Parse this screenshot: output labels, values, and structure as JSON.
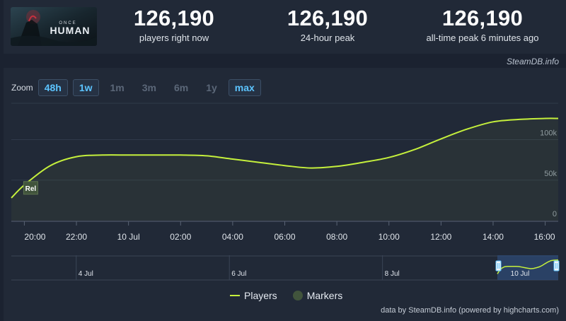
{
  "game": {
    "logo_title_top": "ONCE",
    "logo_title_main": "HUMAN"
  },
  "stats": [
    {
      "value": "126,190",
      "label": "players right now"
    },
    {
      "value": "126,190",
      "label": "24-hour peak"
    },
    {
      "value": "126,190",
      "label": "all-time peak 6 minutes ago"
    }
  ],
  "brand": "SteamDB.info",
  "zoom": {
    "label": "Zoom",
    "options": [
      {
        "label": "48h",
        "active": true
      },
      {
        "label": "1w",
        "active": true
      },
      {
        "label": "1m",
        "active": false
      },
      {
        "label": "3m",
        "active": false
      },
      {
        "label": "6m",
        "active": false
      },
      {
        "label": "1y",
        "active": false
      },
      {
        "label": "max",
        "active": true
      }
    ]
  },
  "legend": {
    "players": "Players",
    "markers": "Markers"
  },
  "credits": "data by SteamDB.info (powered by highcharts.com)",
  "colors": {
    "line": "#c5f03c",
    "marker": "#41543c",
    "accent": "#5cc4ff"
  },
  "chart_data": {
    "type": "line",
    "series": [
      {
        "name": "Players",
        "x": [
          -0.5,
          0,
          1,
          2,
          3,
          4,
          5,
          6,
          7,
          8,
          9,
          10,
          11,
          12,
          13,
          14,
          15,
          16,
          17,
          18,
          19,
          20,
          20.5
        ],
        "values": [
          28000,
          44000,
          68000,
          79000,
          81000,
          81000,
          81000,
          81000,
          80000,
          76000,
          72000,
          68000,
          65000,
          67000,
          72000,
          78000,
          88000,
          101000,
          113000,
          122000,
          125000,
          126190,
          126190
        ]
      }
    ],
    "x_axis_start": "20:00",
    "x_ticks": [
      {
        "x": 0,
        "label": "20:00"
      },
      {
        "x": 2,
        "label": "22:00"
      },
      {
        "x": 4,
        "label": "10 Jul"
      },
      {
        "x": 6,
        "label": "02:00"
      },
      {
        "x": 8,
        "label": "04:00"
      },
      {
        "x": 10,
        "label": "06:00"
      },
      {
        "x": 12,
        "label": "08:00"
      },
      {
        "x": 14,
        "label": "10:00"
      },
      {
        "x": 16,
        "label": "12:00"
      },
      {
        "x": 18,
        "label": "14:00"
      },
      {
        "x": 20,
        "label": "16:00"
      }
    ],
    "xlim": [
      -0.5,
      20.5
    ],
    "y_ticks": [
      {
        "v": 0,
        "label": "0"
      },
      {
        "v": 50000,
        "label": "50k"
      },
      {
        "v": 100000,
        "label": "100k"
      }
    ],
    "ylim": [
      0,
      145000
    ],
    "grid": true,
    "annotations": [
      {
        "x": 0,
        "label": "Rel"
      }
    ],
    "navigator": {
      "ticks": [
        {
          "label": "4 Jul",
          "pos": 0.12
        },
        {
          "label": "6 Jul",
          "pos": 0.4
        },
        {
          "label": "8 Jul",
          "pos": 0.68
        },
        {
          "label": "10 Jul",
          "pos": 0.955
        }
      ],
      "selection_label": "10 Jul"
    }
  }
}
